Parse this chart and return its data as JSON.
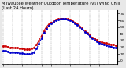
{
  "title": "Milwaukee Weather Outdoor Temperature (vs) Wind Chill (Last 24 Hours)",
  "background_color": "#e8e8e8",
  "plot_bg_color": "#ffffff",
  "grid_color": "#888888",
  "temp_color": "#cc0000",
  "windchill_color": "#0000cc",
  "x_values": [
    0,
    1,
    2,
    3,
    4,
    5,
    6,
    7,
    8,
    9,
    10,
    11,
    12,
    13,
    14,
    15,
    16,
    17,
    18,
    19,
    20,
    21,
    22,
    23,
    24,
    25,
    26,
    27,
    28,
    29,
    30,
    31,
    32,
    33,
    34,
    35,
    36,
    37,
    38,
    39,
    40,
    41,
    42,
    43,
    44,
    45,
    46,
    47
  ],
  "temp_values": [
    22,
    22,
    21,
    20,
    20,
    19,
    19,
    18,
    18,
    17,
    17,
    17,
    18,
    20,
    24,
    30,
    37,
    44,
    50,
    54,
    57,
    59,
    61,
    62,
    63,
    63,
    63,
    62,
    61,
    59,
    57,
    54,
    51,
    48,
    44,
    41,
    38,
    35,
    33,
    31,
    29,
    28,
    27,
    26,
    25,
    24,
    24,
    23
  ],
  "windchill_values": [
    15,
    15,
    14,
    13,
    13,
    12,
    12,
    11,
    11,
    10,
    10,
    10,
    11,
    13,
    18,
    25,
    33,
    41,
    47,
    52,
    55,
    58,
    60,
    61,
    62,
    62,
    62,
    61,
    60,
    58,
    56,
    53,
    50,
    47,
    43,
    40,
    37,
    34,
    31,
    29,
    27,
    25,
    24,
    23,
    22,
    21,
    20,
    19
  ],
  "ylim": [
    -5,
    75
  ],
  "ytick_positions": [
    0,
    10,
    20,
    30,
    40,
    50,
    60,
    70
  ],
  "ytick_labels": [
    "0",
    "10",
    "20",
    "30",
    "40",
    "50",
    "60",
    "70"
  ],
  "xlim": [
    -0.5,
    47.5
  ],
  "vgrid_positions": [
    0,
    4,
    8,
    12,
    16,
    20,
    24,
    28,
    32,
    36,
    40,
    44
  ],
  "xtick_positions": [
    0,
    4,
    8,
    12,
    16,
    20,
    24,
    28,
    32,
    36,
    40,
    44
  ],
  "xtick_labels": [
    "1",
    "",
    "",
    "",
    "",
    "",
    "",
    "",
    "",
    "",
    "",
    ""
  ],
  "title_fontsize": 3.8,
  "tick_fontsize": 3.2,
  "linewidth": 0.7,
  "markersize": 1.0
}
